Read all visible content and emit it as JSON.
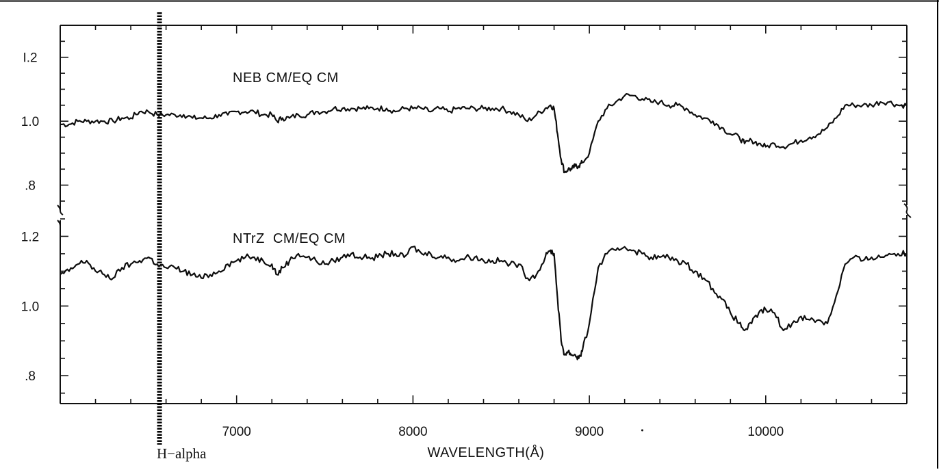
{
  "chart_data": {
    "type": "line",
    "title": "",
    "xlabel": "WAVELENGTH(Å)",
    "xlim": [
      6000,
      10800
    ],
    "x_ticks": [
      7000,
      8000,
      9000,
      10000
    ],
    "x_tick_labels": [
      "7000",
      "8000",
      "9000",
      "10000"
    ],
    "grid": false,
    "legend": "none",
    "panels": [
      {
        "name": "upper",
        "label": "NEB CM/EQ CM",
        "ylabel": "",
        "ylim": [
          0.72,
          1.3
        ],
        "y_ticks": [
          0.8,
          1.0,
          1.2
        ],
        "y_tick_labels": [
          ".8",
          "1.0",
          "I.2"
        ],
        "series": [
          {
            "label": "NEB CM/EQ CM",
            "x": [
              6000,
              6050,
              6100,
              6150,
              6200,
              6250,
              6300,
              6350,
              6400,
              6450,
              6500,
              6550,
              6600,
              6650,
              6700,
              6750,
              6800,
              6850,
              6900,
              6950,
              7000,
              7050,
              7100,
              7150,
              7200,
              7230,
              7260,
              7300,
              7350,
              7400,
              7450,
              7500,
              7550,
              7600,
              7650,
              7700,
              7750,
              7800,
              7850,
              7900,
              7950,
              8000,
              8050,
              8100,
              8150,
              8200,
              8250,
              8300,
              8350,
              8400,
              8450,
              8500,
              8550,
              8600,
              8650,
              8700,
              8750,
              8780,
              8800,
              8820,
              8840,
              8860,
              8880,
              8900,
              8920,
              8940,
              8960,
              9000,
              9050,
              9100,
              9150,
              9200,
              9250,
              9300,
              9350,
              9400,
              9450,
              9500,
              9550,
              9600,
              9650,
              9700,
              9750,
              9800,
              9850,
              9880,
              9920,
              9960,
              10000,
              10050,
              10100,
              10150,
              10200,
              10250,
              10300,
              10350,
              10400,
              10450,
              10500,
              10550,
              10600,
              10650,
              10700,
              10750,
              10800
            ],
            "y": [
              0.99,
              0.99,
              1.0,
              1.0,
              1.0,
              1.0,
              1.0,
              1.01,
              1.01,
              1.03,
              1.03,
              1.02,
              1.02,
              1.02,
              1.02,
              1.01,
              1.01,
              1.01,
              1.02,
              1.02,
              1.03,
              1.03,
              1.03,
              1.02,
              1.02,
              1.0,
              1.01,
              1.01,
              1.02,
              1.02,
              1.03,
              1.03,
              1.04,
              1.04,
              1.04,
              1.04,
              1.04,
              1.04,
              1.04,
              1.03,
              1.04,
              1.04,
              1.04,
              1.03,
              1.04,
              1.03,
              1.04,
              1.04,
              1.04,
              1.04,
              1.04,
              1.04,
              1.03,
              1.02,
              1.0,
              1.02,
              1.04,
              1.05,
              1.04,
              0.96,
              0.88,
              0.84,
              0.85,
              0.85,
              0.86,
              0.86,
              0.87,
              0.9,
              1.0,
              1.04,
              1.06,
              1.08,
              1.08,
              1.07,
              1.06,
              1.06,
              1.05,
              1.05,
              1.04,
              1.02,
              1.01,
              1.0,
              0.98,
              0.96,
              0.95,
              0.93,
              0.94,
              0.93,
              0.92,
              0.93,
              0.92,
              0.93,
              0.94,
              0.95,
              0.96,
              0.98,
              1.01,
              1.05,
              1.05,
              1.05,
              1.05,
              1.06,
              1.06,
              1.05,
              1.05
            ]
          }
        ]
      },
      {
        "name": "lower",
        "label": "NTrZ  CM/EQ CM",
        "ylabel": "",
        "ylim": [
          0.72,
          1.25
        ],
        "y_ticks": [
          0.8,
          1.0,
          1.2
        ],
        "y_tick_labels": [
          ".8",
          "1.0",
          "1.2"
        ],
        "series": [
          {
            "label": "NTrZ  CM/EQ CM",
            "x": [
              6000,
              6050,
              6100,
              6150,
              6200,
              6250,
              6300,
              6350,
              6400,
              6450,
              6500,
              6550,
              6600,
              6650,
              6700,
              6750,
              6800,
              6850,
              6900,
              6950,
              7000,
              7050,
              7100,
              7150,
              7200,
              7230,
              7260,
              7300,
              7350,
              7400,
              7450,
              7500,
              7550,
              7600,
              7650,
              7700,
              7750,
              7800,
              7850,
              7900,
              7950,
              8000,
              8050,
              8100,
              8150,
              8200,
              8250,
              8300,
              8350,
              8400,
              8450,
              8500,
              8550,
              8600,
              8650,
              8700,
              8750,
              8780,
              8800,
              8820,
              8840,
              8860,
              8880,
              8900,
              8920,
              8940,
              8960,
              9000,
              9050,
              9100,
              9150,
              9200,
              9250,
              9300,
              9350,
              9400,
              9450,
              9500,
              9550,
              9600,
              9650,
              9700,
              9750,
              9800,
              9850,
              9880,
              9920,
              9960,
              10000,
              10050,
              10100,
              10150,
              10200,
              10250,
              10300,
              10350,
              10400,
              10450,
              10500,
              10550,
              10600,
              10650,
              10700,
              10750,
              10800
            ],
            "y": [
              1.09,
              1.1,
              1.12,
              1.13,
              1.1,
              1.09,
              1.08,
              1.11,
              1.12,
              1.13,
              1.14,
              1.12,
              1.11,
              1.11,
              1.1,
              1.09,
              1.08,
              1.09,
              1.1,
              1.12,
              1.13,
              1.14,
              1.14,
              1.13,
              1.12,
              1.09,
              1.11,
              1.13,
              1.15,
              1.14,
              1.13,
              1.12,
              1.13,
              1.14,
              1.15,
              1.14,
              1.14,
              1.14,
              1.15,
              1.15,
              1.14,
              1.17,
              1.15,
              1.15,
              1.14,
              1.14,
              1.13,
              1.14,
              1.14,
              1.13,
              1.13,
              1.13,
              1.12,
              1.12,
              1.08,
              1.09,
              1.14,
              1.16,
              1.15,
              1.02,
              0.9,
              0.86,
              0.87,
              0.86,
              0.86,
              0.85,
              0.87,
              0.95,
              1.11,
              1.15,
              1.16,
              1.17,
              1.16,
              1.15,
              1.14,
              1.14,
              1.14,
              1.13,
              1.12,
              1.1,
              1.08,
              1.05,
              1.02,
              0.98,
              0.95,
              0.93,
              0.95,
              0.98,
              0.99,
              0.98,
              0.93,
              0.95,
              0.97,
              0.96,
              0.96,
              0.95,
              1.03,
              1.12,
              1.14,
              1.13,
              1.14,
              1.14,
              1.15,
              1.15,
              1.15
            ]
          }
        ]
      }
    ],
    "annotations": [
      {
        "label": "H−alpha",
        "x": 6563,
        "style": "dashed-vertical-line"
      }
    ]
  }
}
